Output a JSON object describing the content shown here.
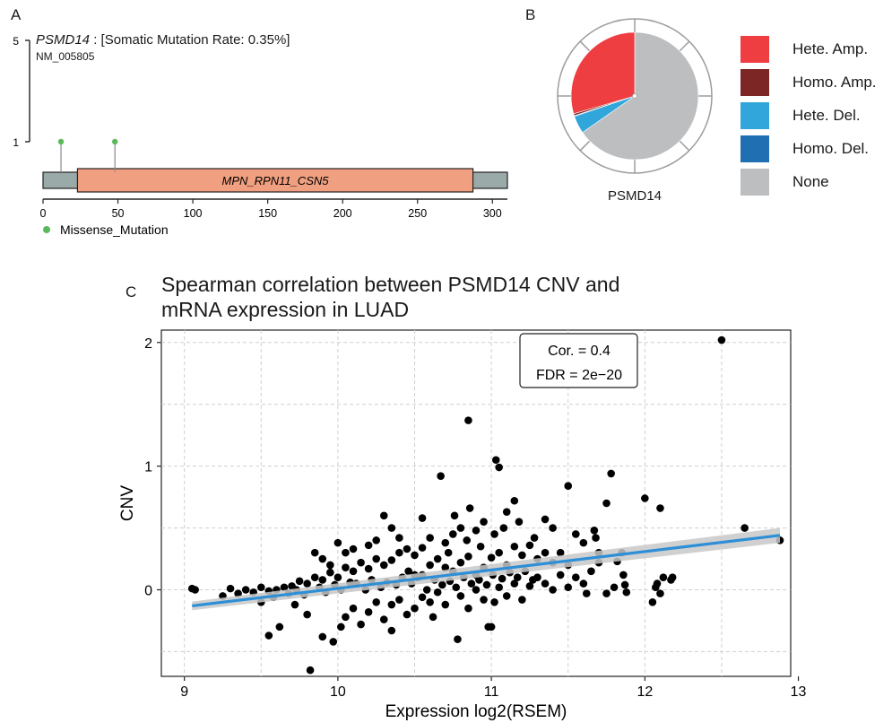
{
  "panels": {
    "a": "A",
    "b": "B",
    "c": "C"
  },
  "lollipop": {
    "gene": "PSMD14",
    "rate_text": " : [Somatic Mutation Rate: 0.35%]",
    "transcript": "NM_005805",
    "y_ticks": [
      "5",
      "1"
    ],
    "x_ticks": [
      "0",
      "50",
      "100",
      "150",
      "200",
      "250",
      "300"
    ],
    "domain_label": "MPN_RPN11_CSN5",
    "legend_label": "Missense_Mutation",
    "missense_color": "#5cb85c",
    "domain_color": "#f0a080",
    "backbone_color": "#9aaaa8"
  },
  "pie": {
    "caption": "PSMD14",
    "legend": [
      {
        "label": "Hete. Amp.",
        "color": "#ee3e42"
      },
      {
        "label": "Homo. Amp.",
        "color": "#7d2626"
      },
      {
        "label": "Hete. Del.",
        "color": "#31a6db"
      },
      {
        "label": "Homo. Del.",
        "color": "#1f6fb2"
      },
      {
        "label": "None",
        "color": "#bdbec0"
      }
    ]
  },
  "scatter": {
    "title_line1": "Spearman correlation between PSMD14 CNV and",
    "title_line2": "mRNA expression in LUAD",
    "xlabel": "Expression log2(RSEM)",
    "ylabel": "CNV",
    "x_ticks": [
      "9",
      "10",
      "11",
      "12",
      "13"
    ],
    "y_ticks": [
      "2",
      "1",
      "0"
    ],
    "annot_cor": "Cor. = 0.4",
    "annot_fdr": "FDR = 2e−20",
    "fit_color": "#2e8fd6",
    "band_color": "#c8c8c8"
  },
  "chart_data": [
    {
      "type": "lollipop",
      "title": "PSMD14 : [Somatic Mutation Rate: 0.35%]",
      "subtitle": "NM_005805",
      "xlim": [
        0,
        310
      ],
      "ylim": [
        1,
        5
      ],
      "protein_length": 310,
      "domains": [
        {
          "name": "MPN_RPN11_CSN5",
          "start": 23,
          "end": 287
        }
      ],
      "mutations": [
        {
          "position": 12,
          "count": 1,
          "type": "Missense_Mutation"
        },
        {
          "position": 48,
          "count": 1,
          "type": "Missense_Mutation"
        }
      ]
    },
    {
      "type": "pie",
      "title": "PSMD14",
      "slices": [
        {
          "label": "Hete. Amp.",
          "value": 29.5
        },
        {
          "label": "Homo. Amp.",
          "value": 0.5
        },
        {
          "label": "Hete. Del.",
          "value": 4.5
        },
        {
          "label": "Homo. Del.",
          "value": 0.2
        },
        {
          "label": "None",
          "value": 65.3
        }
      ]
    },
    {
      "type": "scatter",
      "title": "Spearman correlation between PSMD14 CNV and mRNA expression in LUAD",
      "xlabel": "Expression log2(RSEM)",
      "ylabel": "CNV",
      "xlim": [
        8.85,
        12.95
      ],
      "ylim": [
        -0.7,
        2.1
      ],
      "grid": true,
      "annotation": [
        "Cor. = 0.4",
        "FDR = 2e−20"
      ],
      "fit": {
        "x": [
          9.05,
          12.88
        ],
        "y": [
          -0.13,
          0.44
        ]
      },
      "points": [
        [
          12.5,
          2.02
        ],
        [
          10.85,
          1.37
        ],
        [
          11.03,
          1.05
        ],
        [
          11.05,
          0.99
        ],
        [
          10.67,
          0.92
        ],
        [
          11.78,
          0.94
        ],
        [
          11.5,
          0.84
        ],
        [
          12.0,
          0.74
        ],
        [
          11.75,
          0.7
        ],
        [
          12.1,
          0.66
        ],
        [
          10.3,
          0.6
        ],
        [
          10.55,
          0.58
        ],
        [
          11.15,
          0.72
        ],
        [
          11.1,
          0.63
        ],
        [
          11.35,
          0.57
        ],
        [
          12.65,
          0.5
        ],
        [
          11.67,
          0.48
        ],
        [
          11.68,
          0.42
        ],
        [
          12.88,
          0.4
        ],
        [
          11.4,
          0.5
        ],
        [
          11.55,
          0.45
        ],
        [
          11.6,
          0.38
        ],
        [
          11.7,
          0.3
        ],
        [
          11.82,
          0.23
        ],
        [
          11.85,
          0.3
        ],
        [
          11.86,
          0.12
        ],
        [
          11.87,
          0.04
        ],
        [
          11.88,
          -0.02
        ],
        [
          12.05,
          -0.1
        ],
        [
          12.07,
          0.02
        ],
        [
          12.12,
          0.1
        ],
        [
          12.17,
          0.08
        ],
        [
          12.08,
          0.05
        ],
        [
          12.1,
          -0.03
        ],
        [
          10.95,
          0.55
        ],
        [
          10.9,
          0.48
        ],
        [
          10.86,
          0.66
        ],
        [
          10.8,
          0.5
        ],
        [
          10.75,
          0.45
        ],
        [
          10.7,
          0.38
        ],
        [
          10.72,
          0.3
        ],
        [
          10.6,
          0.42
        ],
        [
          10.55,
          0.34
        ],
        [
          10.5,
          0.28
        ],
        [
          10.45,
          0.33
        ],
        [
          10.4,
          0.3
        ],
        [
          10.35,
          0.24
        ],
        [
          10.3,
          0.2
        ],
        [
          10.25,
          0.25
        ],
        [
          10.2,
          0.17
        ],
        [
          10.15,
          0.22
        ],
        [
          10.1,
          0.15
        ],
        [
          10.05,
          0.18
        ],
        [
          10.0,
          0.1
        ],
        [
          9.95,
          0.14
        ],
        [
          9.9,
          0.08
        ],
        [
          9.85,
          0.1
        ],
        [
          9.8,
          0.05
        ],
        [
          9.75,
          0.07
        ],
        [
          9.7,
          0.03
        ],
        [
          9.65,
          0.02
        ],
        [
          9.6,
          0.0
        ],
        [
          9.55,
          -0.01
        ],
        [
          9.5,
          0.02
        ],
        [
          9.45,
          -0.02
        ],
        [
          9.4,
          0.0
        ],
        [
          9.35,
          -0.03
        ],
        [
          9.3,
          0.01
        ],
        [
          9.25,
          -0.05
        ],
        [
          9.07,
          0.0
        ],
        [
          9.05,
          0.01
        ],
        [
          9.5,
          -0.1
        ],
        [
          9.58,
          -0.06
        ],
        [
          9.62,
          -0.3
        ],
        [
          9.55,
          -0.37
        ],
        [
          9.72,
          -0.12
        ],
        [
          9.8,
          -0.2
        ],
        [
          9.82,
          -0.65
        ],
        [
          9.9,
          -0.38
        ],
        [
          9.97,
          -0.42
        ],
        [
          10.02,
          -0.3
        ],
        [
          10.05,
          -0.22
        ],
        [
          10.1,
          -0.15
        ],
        [
          10.15,
          -0.28
        ],
        [
          10.2,
          -0.18
        ],
        [
          10.25,
          -0.1
        ],
        [
          10.3,
          -0.24
        ],
        [
          10.35,
          -0.12
        ],
        [
          10.35,
          -0.33
        ],
        [
          10.4,
          -0.08
        ],
        [
          10.45,
          -0.2
        ],
        [
          10.5,
          -0.15
        ],
        [
          10.55,
          -0.06
        ],
        [
          10.6,
          -0.1
        ],
        [
          10.62,
          -0.22
        ],
        [
          10.65,
          -0.02
        ],
        [
          10.7,
          -0.12
        ],
        [
          10.78,
          -0.4
        ],
        [
          10.8,
          -0.05
        ],
        [
          10.85,
          -0.15
        ],
        [
          10.9,
          0.0
        ],
        [
          10.95,
          -0.08
        ],
        [
          11.0,
          -0.3
        ],
        [
          10.98,
          -0.3
        ],
        [
          11.02,
          -0.1
        ],
        [
          11.05,
          0.02
        ],
        [
          11.1,
          -0.05
        ],
        [
          11.15,
          0.05
        ],
        [
          11.2,
          -0.08
        ],
        [
          11.25,
          0.03
        ],
        [
          11.3,
          0.1
        ],
        [
          11.35,
          0.05
        ],
        [
          11.4,
          0.0
        ],
        [
          11.45,
          0.12
        ],
        [
          11.5,
          0.02
        ],
        [
          11.55,
          0.1
        ],
        [
          11.6,
          0.05
        ],
        [
          11.65,
          0.15
        ],
        [
          11.7,
          0.22
        ],
        [
          11.62,
          -0.03
        ],
        [
          10.0,
          0.38
        ],
        [
          9.9,
          0.25
        ],
        [
          9.85,
          0.3
        ],
        [
          9.95,
          0.2
        ],
        [
          10.05,
          0.3
        ],
        [
          10.1,
          0.33
        ],
        [
          10.2,
          0.36
        ],
        [
          10.25,
          0.4
        ],
        [
          10.35,
          0.5
        ],
        [
          10.4,
          0.42
        ],
        [
          10.55,
          0.12
        ],
        [
          10.6,
          0.2
        ],
        [
          10.65,
          0.25
        ],
        [
          10.7,
          0.18
        ],
        [
          10.75,
          0.15
        ],
        [
          10.8,
          0.22
        ],
        [
          10.85,
          0.27
        ],
        [
          10.9,
          0.12
        ],
        [
          10.95,
          0.18
        ],
        [
          11.0,
          0.26
        ],
        [
          11.05,
          0.3
        ],
        [
          11.1,
          0.2
        ],
        [
          11.15,
          0.35
        ],
        [
          11.2,
          0.28
        ],
        [
          11.25,
          0.36
        ],
        [
          11.3,
          0.25
        ],
        [
          11.35,
          0.3
        ],
        [
          11.4,
          0.22
        ],
        [
          11.45,
          0.3
        ],
        [
          11.5,
          0.2
        ],
        [
          10.48,
          0.05
        ],
        [
          10.52,
          0.1
        ],
        [
          10.58,
          0.0
        ],
        [
          10.63,
          0.08
        ],
        [
          10.68,
          0.04
        ],
        [
          10.73,
          0.07
        ],
        [
          10.77,
          0.02
        ],
        [
          10.82,
          0.1
        ],
        [
          10.87,
          0.05
        ],
        [
          10.92,
          0.08
        ],
        [
          10.97,
          0.04
        ],
        [
          11.01,
          0.12
        ],
        [
          11.07,
          0.09
        ],
        [
          11.12,
          0.14
        ],
        [
          11.17,
          0.1
        ],
        [
          11.22,
          0.15
        ],
        [
          11.27,
          0.08
        ],
        [
          10.12,
          0.05
        ],
        [
          10.18,
          0.0
        ],
        [
          10.22,
          0.08
        ],
        [
          10.28,
          0.02
        ],
        [
          10.32,
          0.06
        ],
        [
          10.38,
          0.04
        ],
        [
          10.42,
          0.1
        ],
        [
          10.46,
          0.15
        ],
        [
          10.5,
          0.12
        ],
        [
          9.68,
          -0.03
        ],
        [
          9.73,
          0.0
        ],
        [
          9.78,
          -0.04
        ],
        [
          9.88,
          0.02
        ],
        [
          9.92,
          -0.02
        ],
        [
          9.98,
          0.04
        ],
        [
          10.02,
          0.0
        ],
        [
          10.08,
          0.06
        ],
        [
          11.8,
          0.02
        ],
        [
          11.75,
          -0.03
        ],
        [
          12.18,
          0.1
        ],
        [
          10.76,
          0.6
        ],
        [
          10.84,
          0.4
        ],
        [
          10.93,
          0.35
        ],
        [
          11.02,
          0.45
        ],
        [
          11.08,
          0.5
        ],
        [
          11.18,
          0.55
        ],
        [
          11.28,
          0.42
        ]
      ]
    }
  ]
}
